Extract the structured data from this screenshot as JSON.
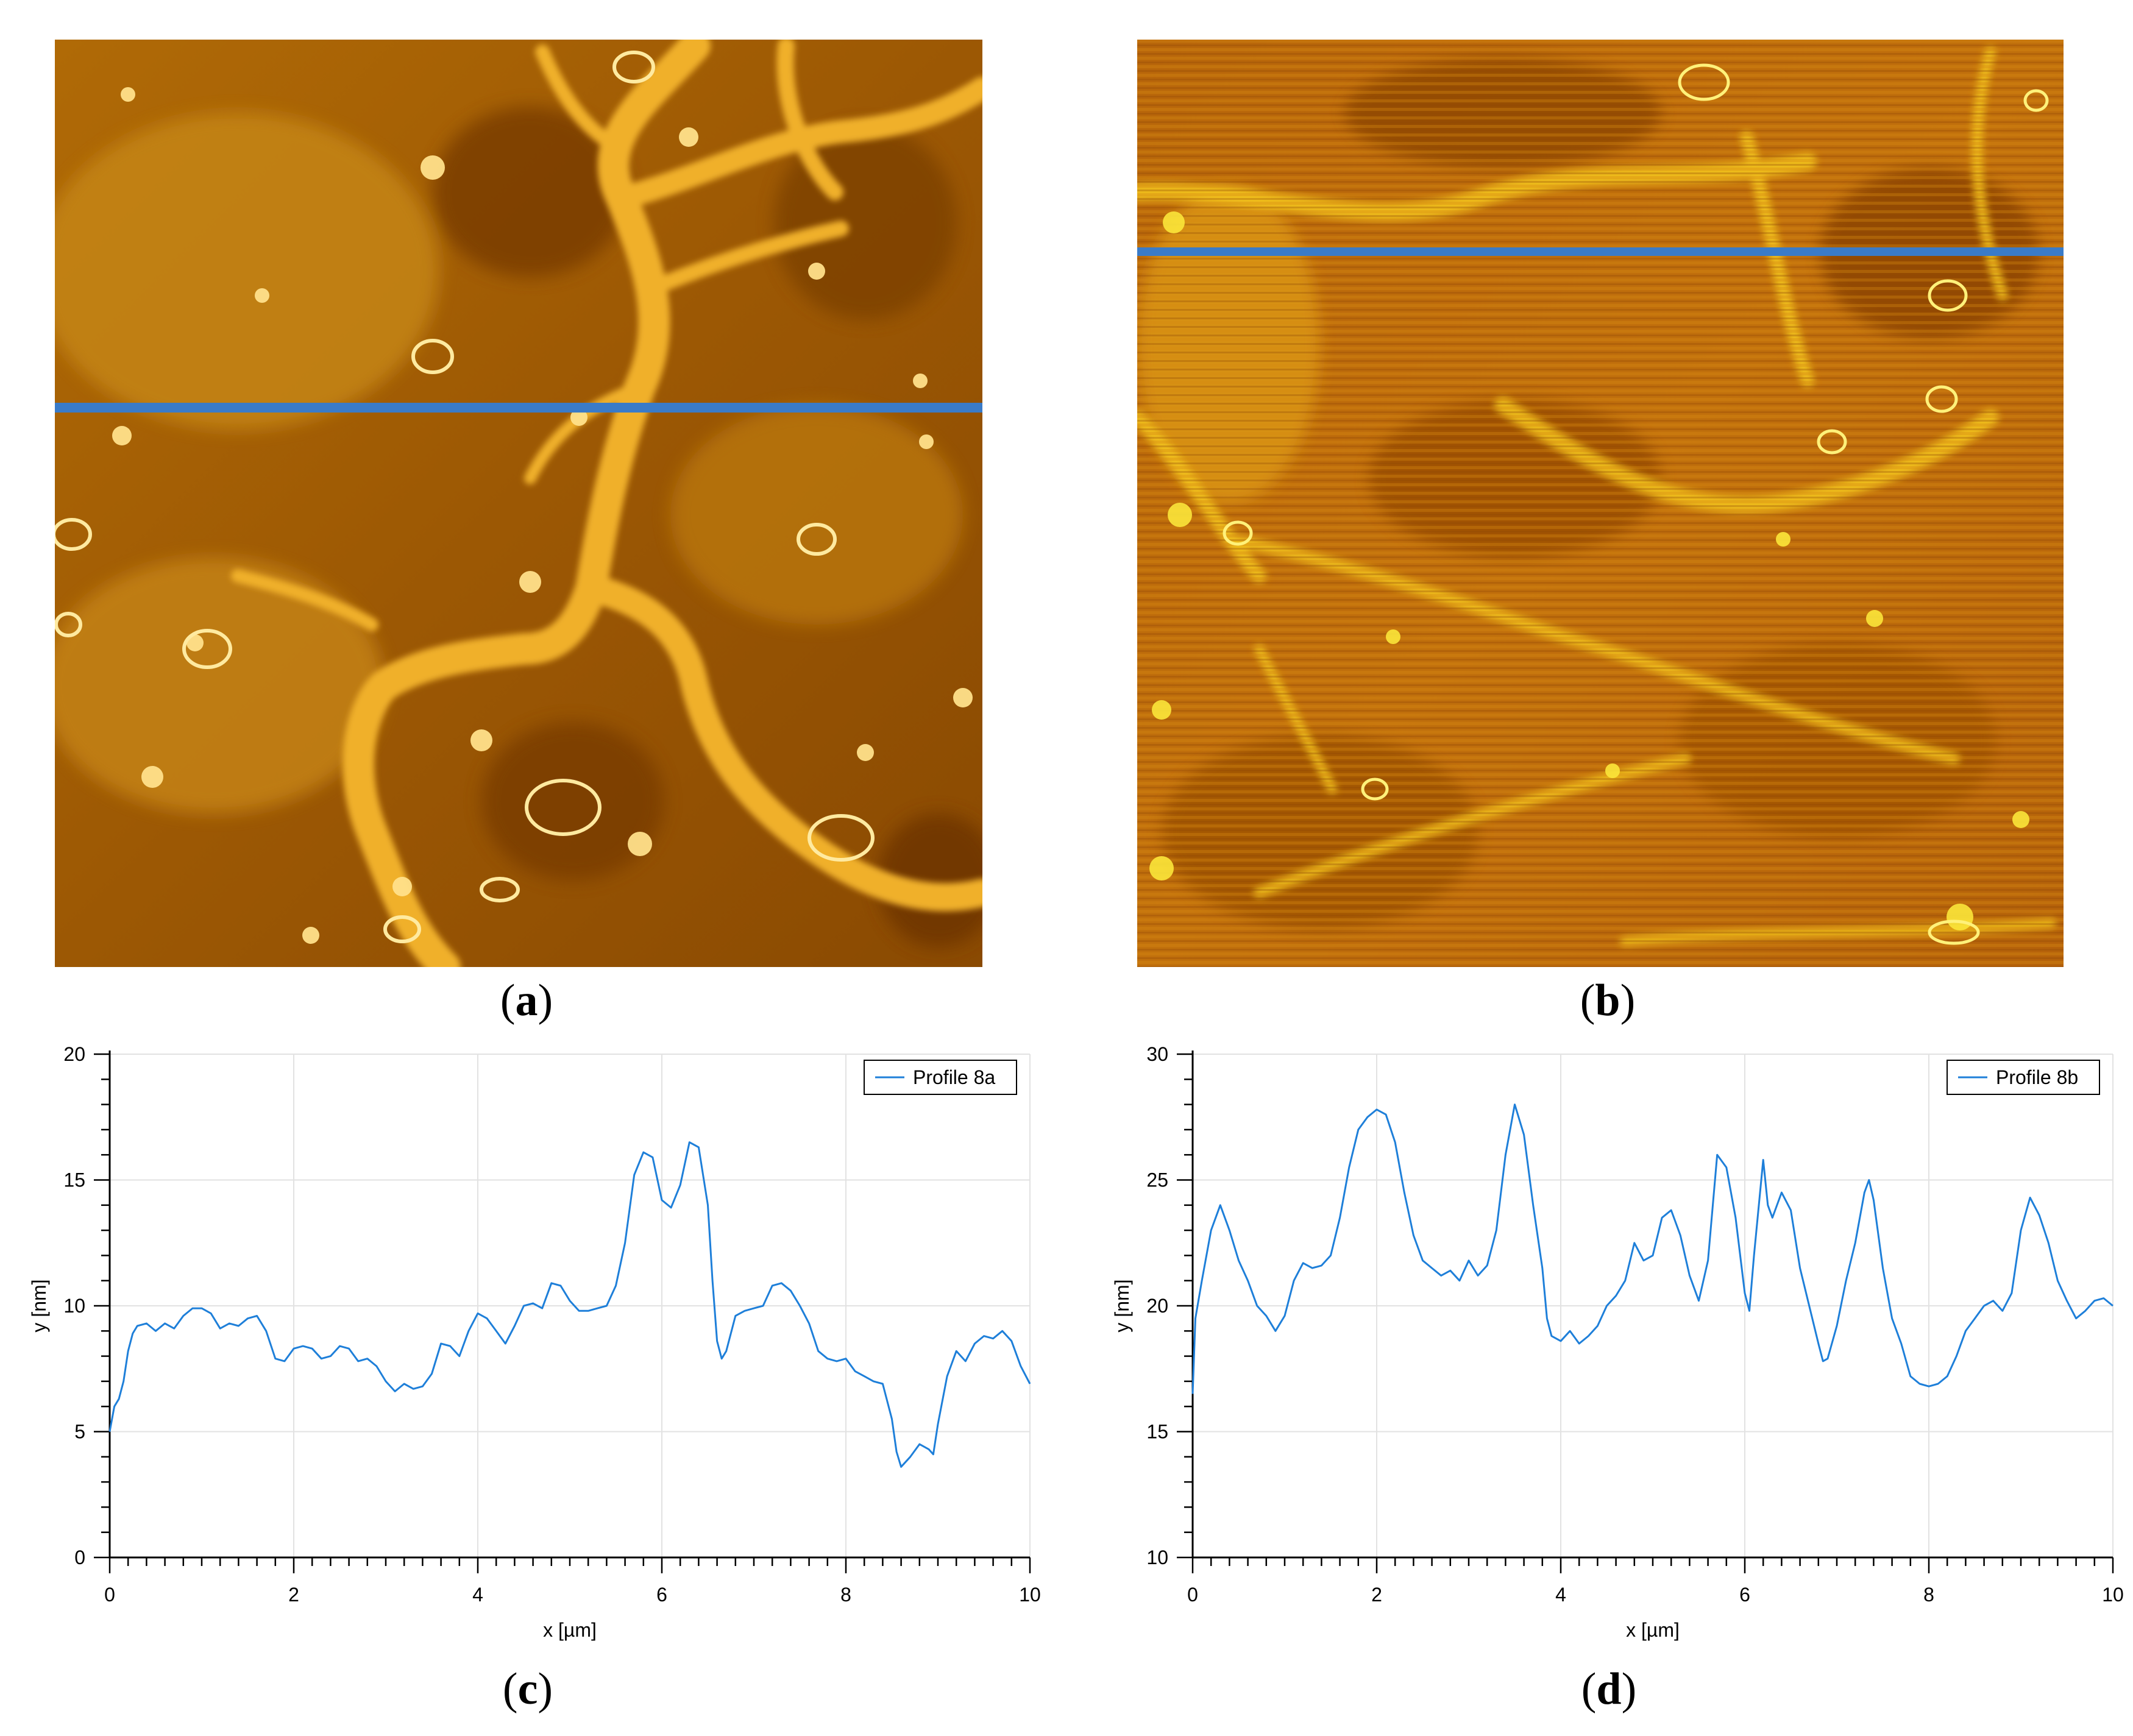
{
  "panels": [
    {
      "id": "a",
      "label": "a",
      "caption_open": "(",
      "caption_close": ")",
      "scan_line_color": "#3a7bc8"
    },
    {
      "id": "b",
      "label": "b",
      "caption_open": "(",
      "caption_close": ")",
      "scan_line_color": "#3a7bc8"
    },
    {
      "id": "c",
      "label": "c",
      "caption_open": "(",
      "caption_close": ")"
    },
    {
      "id": "d",
      "label": "d",
      "caption_open": "(",
      "caption_close": ")"
    }
  ],
  "chart_data": [
    {
      "type": "line",
      "panel": "c",
      "series_name": "Profile 8a",
      "line_color": "#1e7fd9",
      "xlabel": "x [µm]",
      "ylabel": "y [nm]",
      "xlim": [
        0,
        10
      ],
      "ylim": [
        0,
        20
      ],
      "xticks": [
        0,
        2,
        4,
        6,
        8,
        10
      ],
      "yticks": [
        0,
        5,
        10,
        15,
        20
      ],
      "legend_position": "top-right",
      "grid": true,
      "points": [
        [
          0,
          5.0
        ],
        [
          0.05,
          6.0
        ],
        [
          0.1,
          6.3
        ],
        [
          0.15,
          7.0
        ],
        [
          0.2,
          8.2
        ],
        [
          0.25,
          8.9
        ],
        [
          0.3,
          9.2
        ],
        [
          0.4,
          9.3
        ],
        [
          0.5,
          9.0
        ],
        [
          0.6,
          9.3
        ],
        [
          0.7,
          9.1
        ],
        [
          0.8,
          9.6
        ],
        [
          0.9,
          9.9
        ],
        [
          1.0,
          9.9
        ],
        [
          1.1,
          9.7
        ],
        [
          1.2,
          9.1
        ],
        [
          1.3,
          9.3
        ],
        [
          1.4,
          9.2
        ],
        [
          1.5,
          9.5
        ],
        [
          1.6,
          9.6
        ],
        [
          1.7,
          9.0
        ],
        [
          1.8,
          7.9
        ],
        [
          1.9,
          7.8
        ],
        [
          2.0,
          8.3
        ],
        [
          2.1,
          8.4
        ],
        [
          2.2,
          8.3
        ],
        [
          2.3,
          7.9
        ],
        [
          2.4,
          8.0
        ],
        [
          2.5,
          8.4
        ],
        [
          2.6,
          8.3
        ],
        [
          2.7,
          7.8
        ],
        [
          2.8,
          7.9
        ],
        [
          2.9,
          7.6
        ],
        [
          3.0,
          7.0
        ],
        [
          3.1,
          6.6
        ],
        [
          3.2,
          6.9
        ],
        [
          3.3,
          6.7
        ],
        [
          3.4,
          6.8
        ],
        [
          3.5,
          7.3
        ],
        [
          3.6,
          8.5
        ],
        [
          3.7,
          8.4
        ],
        [
          3.8,
          8.0
        ],
        [
          3.9,
          9.0
        ],
        [
          4.0,
          9.7
        ],
        [
          4.1,
          9.5
        ],
        [
          4.2,
          9.0
        ],
        [
          4.3,
          8.5
        ],
        [
          4.4,
          9.2
        ],
        [
          4.5,
          10.0
        ],
        [
          4.6,
          10.1
        ],
        [
          4.7,
          9.9
        ],
        [
          4.8,
          10.9
        ],
        [
          4.9,
          10.8
        ],
        [
          5.0,
          10.2
        ],
        [
          5.1,
          9.8
        ],
        [
          5.2,
          9.8
        ],
        [
          5.3,
          9.9
        ],
        [
          5.4,
          10.0
        ],
        [
          5.5,
          10.8
        ],
        [
          5.6,
          12.5
        ],
        [
          5.7,
          15.2
        ],
        [
          5.8,
          16.1
        ],
        [
          5.9,
          15.9
        ],
        [
          6.0,
          14.2
        ],
        [
          6.1,
          13.9
        ],
        [
          6.2,
          14.8
        ],
        [
          6.3,
          16.5
        ],
        [
          6.4,
          16.3
        ],
        [
          6.5,
          14.0
        ],
        [
          6.55,
          11.0
        ],
        [
          6.6,
          8.6
        ],
        [
          6.65,
          7.9
        ],
        [
          6.7,
          8.2
        ],
        [
          6.8,
          9.6
        ],
        [
          6.9,
          9.8
        ],
        [
          7.0,
          9.9
        ],
        [
          7.1,
          10.0
        ],
        [
          7.2,
          10.8
        ],
        [
          7.3,
          10.9
        ],
        [
          7.4,
          10.6
        ],
        [
          7.5,
          10.0
        ],
        [
          7.6,
          9.3
        ],
        [
          7.7,
          8.2
        ],
        [
          7.8,
          7.9
        ],
        [
          7.9,
          7.8
        ],
        [
          8.0,
          7.9
        ],
        [
          8.1,
          7.4
        ],
        [
          8.2,
          7.2
        ],
        [
          8.3,
          7.0
        ],
        [
          8.4,
          6.9
        ],
        [
          8.5,
          5.5
        ],
        [
          8.55,
          4.2
        ],
        [
          8.6,
          3.6
        ],
        [
          8.7,
          4.0
        ],
        [
          8.8,
          4.5
        ],
        [
          8.9,
          4.3
        ],
        [
          8.95,
          4.1
        ],
        [
          9.0,
          5.3
        ],
        [
          9.1,
          7.2
        ],
        [
          9.2,
          8.2
        ],
        [
          9.3,
          7.8
        ],
        [
          9.4,
          8.5
        ],
        [
          9.5,
          8.8
        ],
        [
          9.6,
          8.7
        ],
        [
          9.7,
          9.0
        ],
        [
          9.8,
          8.6
        ],
        [
          9.9,
          7.6
        ],
        [
          10.0,
          6.9
        ]
      ]
    },
    {
      "type": "line",
      "panel": "d",
      "series_name": "Profile 8b",
      "line_color": "#1e7fd9",
      "xlabel": "x [µm]",
      "ylabel": "y [nm]",
      "xlim": [
        0,
        10
      ],
      "ylim": [
        10,
        30
      ],
      "xticks": [
        0,
        2,
        4,
        6,
        8,
        10
      ],
      "yticks": [
        10,
        15,
        20,
        25,
        30
      ],
      "legend_position": "top-right",
      "grid": true,
      "points": [
        [
          0,
          16.5
        ],
        [
          0.03,
          19.5
        ],
        [
          0.1,
          21.0
        ],
        [
          0.2,
          23.0
        ],
        [
          0.3,
          24.0
        ],
        [
          0.4,
          23.0
        ],
        [
          0.5,
          21.8
        ],
        [
          0.6,
          21.0
        ],
        [
          0.7,
          20.0
        ],
        [
          0.8,
          19.6
        ],
        [
          0.9,
          19.0
        ],
        [
          1.0,
          19.6
        ],
        [
          1.1,
          21.0
        ],
        [
          1.2,
          21.7
        ],
        [
          1.3,
          21.5
        ],
        [
          1.4,
          21.6
        ],
        [
          1.5,
          22.0
        ],
        [
          1.6,
          23.5
        ],
        [
          1.7,
          25.5
        ],
        [
          1.8,
          27.0
        ],
        [
          1.9,
          27.5
        ],
        [
          2.0,
          27.8
        ],
        [
          2.1,
          27.6
        ],
        [
          2.2,
          26.5
        ],
        [
          2.3,
          24.5
        ],
        [
          2.4,
          22.8
        ],
        [
          2.5,
          21.8
        ],
        [
          2.6,
          21.5
        ],
        [
          2.7,
          21.2
        ],
        [
          2.8,
          21.4
        ],
        [
          2.9,
          21.0
        ],
        [
          3.0,
          21.8
        ],
        [
          3.1,
          21.2
        ],
        [
          3.2,
          21.6
        ],
        [
          3.3,
          23.0
        ],
        [
          3.4,
          26.0
        ],
        [
          3.5,
          28.0
        ],
        [
          3.6,
          26.8
        ],
        [
          3.7,
          24.0
        ],
        [
          3.8,
          21.5
        ],
        [
          3.85,
          19.5
        ],
        [
          3.9,
          18.8
        ],
        [
          4.0,
          18.6
        ],
        [
          4.1,
          19.0
        ],
        [
          4.2,
          18.5
        ],
        [
          4.3,
          18.8
        ],
        [
          4.4,
          19.2
        ],
        [
          4.5,
          20.0
        ],
        [
          4.6,
          20.4
        ],
        [
          4.7,
          21.0
        ],
        [
          4.8,
          22.5
        ],
        [
          4.9,
          21.8
        ],
        [
          5.0,
          22.0
        ],
        [
          5.1,
          23.5
        ],
        [
          5.2,
          23.8
        ],
        [
          5.3,
          22.8
        ],
        [
          5.4,
          21.2
        ],
        [
          5.5,
          20.2
        ],
        [
          5.6,
          21.8
        ],
        [
          5.7,
          26.0
        ],
        [
          5.8,
          25.5
        ],
        [
          5.9,
          23.5
        ],
        [
          6.0,
          20.5
        ],
        [
          6.05,
          19.8
        ],
        [
          6.1,
          22.0
        ],
        [
          6.2,
          25.8
        ],
        [
          6.25,
          24.0
        ],
        [
          6.3,
          23.5
        ],
        [
          6.4,
          24.5
        ],
        [
          6.5,
          23.8
        ],
        [
          6.6,
          21.5
        ],
        [
          6.7,
          20.0
        ],
        [
          6.8,
          18.5
        ],
        [
          6.85,
          17.8
        ],
        [
          6.9,
          17.9
        ],
        [
          7.0,
          19.2
        ],
        [
          7.1,
          21.0
        ],
        [
          7.2,
          22.5
        ],
        [
          7.3,
          24.5
        ],
        [
          7.35,
          25.0
        ],
        [
          7.4,
          24.2
        ],
        [
          7.5,
          21.5
        ],
        [
          7.6,
          19.5
        ],
        [
          7.7,
          18.5
        ],
        [
          7.8,
          17.2
        ],
        [
          7.9,
          16.9
        ],
        [
          8.0,
          16.8
        ],
        [
          8.1,
          16.9
        ],
        [
          8.2,
          17.2
        ],
        [
          8.3,
          18.0
        ],
        [
          8.4,
          19.0
        ],
        [
          8.5,
          19.5
        ],
        [
          8.6,
          20.0
        ],
        [
          8.7,
          20.2
        ],
        [
          8.8,
          19.8
        ],
        [
          8.9,
          20.5
        ],
        [
          9.0,
          23.0
        ],
        [
          9.1,
          24.3
        ],
        [
          9.2,
          23.6
        ],
        [
          9.3,
          22.5
        ],
        [
          9.4,
          21.0
        ],
        [
          9.5,
          20.2
        ],
        [
          9.6,
          19.5
        ],
        [
          9.7,
          19.8
        ],
        [
          9.8,
          20.2
        ],
        [
          9.9,
          20.3
        ],
        [
          10.0,
          20.0
        ]
      ]
    }
  ]
}
